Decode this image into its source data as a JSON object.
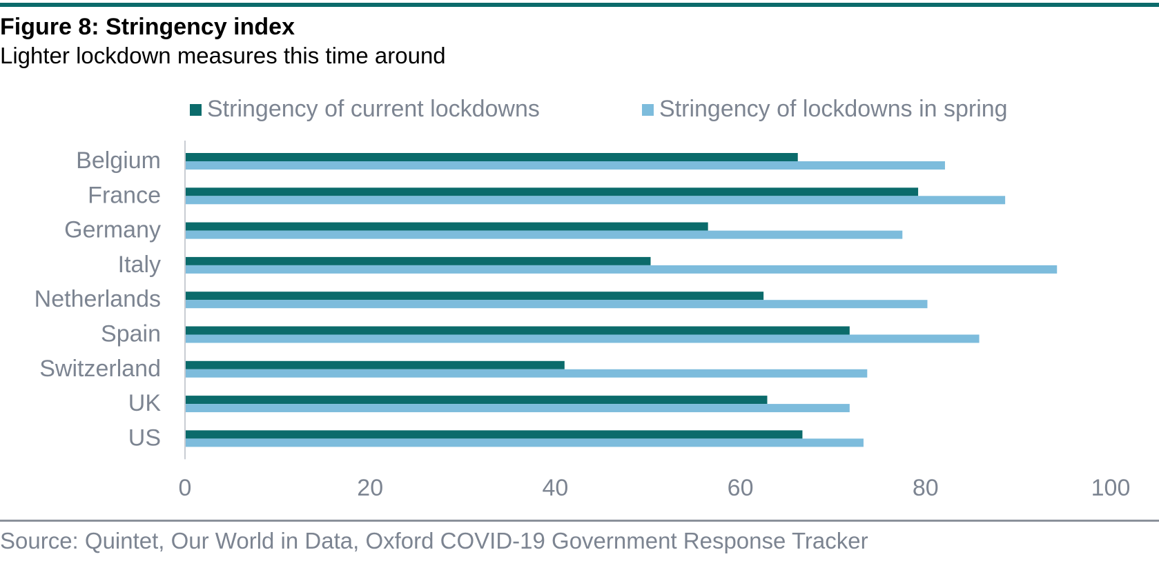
{
  "figure": {
    "title": "Figure 8: Stringency index",
    "subtitle": "Lighter lockdown measures this time around",
    "source": "Source: Quintet, Our World in Data, Oxford COVID-19 Government Response Tracker"
  },
  "colors": {
    "rule": "#0b6b6b",
    "text_grey": "#7c8491",
    "axis": "#c8ccd2"
  },
  "chart_data": {
    "type": "bar",
    "orientation": "horizontal",
    "categories": [
      "Belgium",
      "France",
      "Germany",
      "Italy",
      "Netherlands",
      "Spain",
      "Switzerland",
      "UK",
      "US"
    ],
    "series": [
      {
        "name": "Stringency of current lockdowns",
        "color": "#0b6b6b",
        "values": [
          66.2,
          79.2,
          56.5,
          50.3,
          62.5,
          71.8,
          41.0,
          62.9,
          66.7
        ]
      },
      {
        "name": "Stringency of lockdowns in spring",
        "color": "#7dbcdc",
        "values": [
          82.1,
          88.6,
          77.5,
          94.2,
          80.2,
          85.8,
          73.7,
          71.8,
          73.3
        ]
      }
    ],
    "xlim": [
      0,
      100
    ],
    "xticks": [
      0,
      20,
      40,
      60,
      80,
      100
    ],
    "grid": false,
    "legend": "top"
  }
}
